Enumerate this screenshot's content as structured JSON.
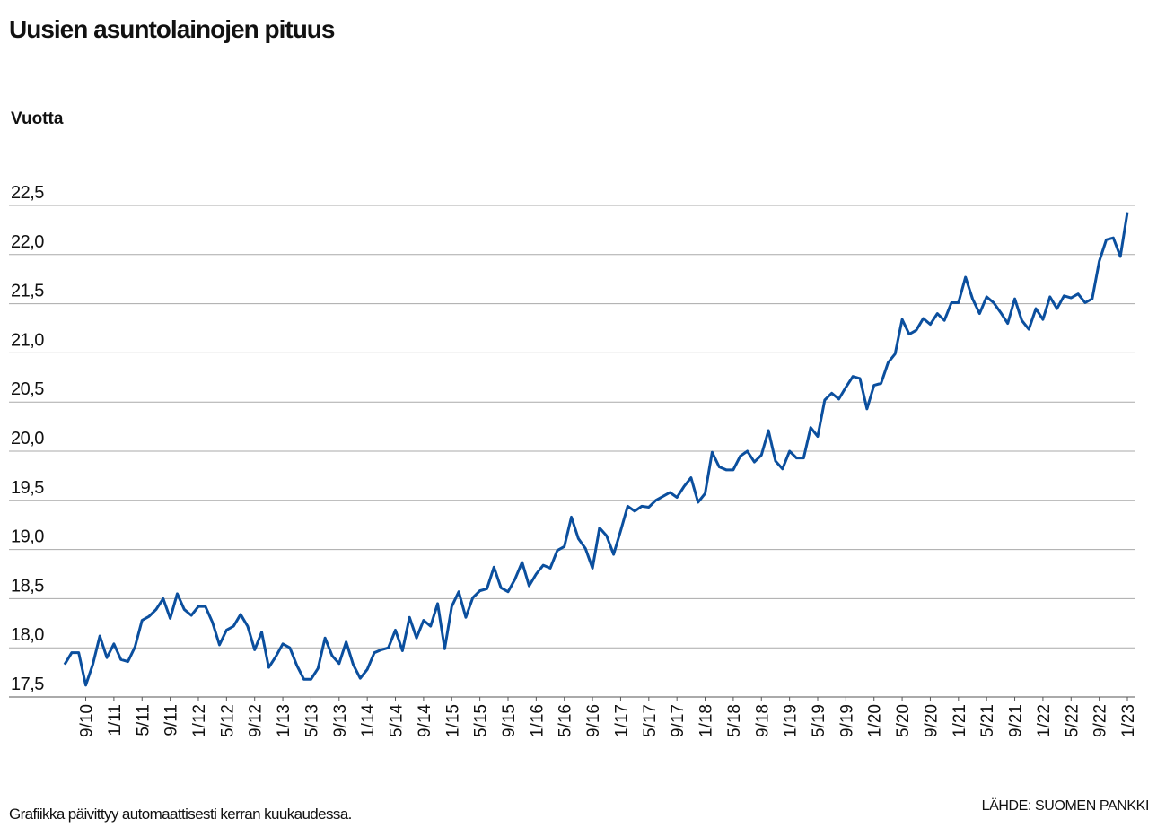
{
  "chart_data": {
    "type": "line",
    "title": "Uusien asuntolainojen pituus",
    "y_label": "Vuotta",
    "note": "Grafiikka päivittyy automaattisesti kerran kuukaudessa.",
    "source": "LÄHDE: SUOMEN PANKKI",
    "categories": [
      null,
      null,
      null,
      "9/10",
      null,
      null,
      null,
      "1/11",
      null,
      null,
      null,
      "5/11",
      null,
      null,
      null,
      "9/11",
      null,
      null,
      null,
      "1/12",
      null,
      null,
      null,
      "5/12",
      null,
      null,
      null,
      "9/12",
      null,
      null,
      null,
      "1/13",
      null,
      null,
      null,
      "5/13",
      null,
      null,
      null,
      "9/13",
      null,
      null,
      null,
      "1/14",
      null,
      null,
      null,
      "5/14",
      null,
      null,
      null,
      "9/14",
      null,
      null,
      null,
      "1/15",
      null,
      null,
      null,
      "5/15",
      null,
      null,
      null,
      "9/15",
      null,
      null,
      null,
      "1/16",
      null,
      null,
      null,
      "5/16",
      null,
      null,
      null,
      "9/16",
      null,
      null,
      null,
      "1/17",
      null,
      null,
      null,
      "5/17",
      null,
      null,
      null,
      "9/17",
      null,
      null,
      null,
      "1/18",
      null,
      null,
      null,
      "5/18",
      null,
      null,
      null,
      "9/18",
      null,
      null,
      null,
      "1/19",
      null,
      null,
      null,
      "5/19",
      null,
      null,
      null,
      "9/19",
      null,
      null,
      null,
      "1/20",
      null,
      null,
      null,
      "5/20",
      null,
      null,
      null,
      "9/20",
      null,
      null,
      null,
      "1/21",
      null,
      null,
      null,
      "5/21",
      null,
      null,
      null,
      "9/21",
      null,
      null,
      null,
      "1/22",
      null,
      null,
      null,
      "5/22",
      null,
      null,
      null,
      "9/22",
      null,
      null,
      null,
      "1/23"
    ],
    "series": [
      {
        "color": "#0b4f9e",
        "values": [
          17.83,
          17.95,
          17.95,
          17.62,
          17.83,
          18.12,
          17.9,
          18.04,
          17.88,
          17.86,
          18.01,
          18.28,
          18.32,
          18.39,
          18.5,
          18.3,
          18.55,
          18.39,
          18.33,
          18.42,
          18.42,
          18.26,
          18.03,
          18.18,
          18.22,
          18.34,
          18.22,
          17.98,
          18.16,
          17.8,
          17.91,
          18.04,
          18.0,
          17.82,
          17.68,
          17.68,
          17.79,
          18.1,
          17.92,
          17.84,
          18.06,
          17.83,
          17.69,
          17.78,
          17.95,
          17.98,
          18.0,
          18.18,
          17.97,
          18.31,
          18.1,
          18.28,
          18.22,
          18.45,
          17.99,
          18.42,
          18.57,
          18.31,
          18.51,
          18.58,
          18.6,
          18.82,
          18.61,
          18.57,
          18.7,
          18.87,
          18.63,
          18.75,
          18.84,
          18.81,
          18.99,
          19.03,
          19.33,
          19.11,
          19.01,
          18.81,
          19.22,
          19.14,
          18.95,
          19.19,
          19.44,
          19.39,
          19.44,
          19.43,
          19.5,
          19.54,
          19.58,
          19.53,
          19.64,
          19.73,
          19.48,
          19.57,
          19.99,
          19.84,
          19.81,
          19.81,
          19.95,
          20.0,
          19.89,
          19.96,
          20.21,
          19.9,
          19.82,
          20.0,
          19.93,
          19.93,
          20.24,
          20.15,
          20.52,
          20.59,
          20.53,
          20.65,
          20.76,
          20.74,
          20.43,
          20.67,
          20.69,
          20.9,
          20.99,
          21.34,
          21.19,
          21.23,
          21.35,
          21.29,
          21.4,
          21.33,
          21.51,
          21.51,
          21.77,
          21.55,
          21.4,
          21.57,
          21.51,
          21.41,
          21.3,
          21.55,
          21.33,
          21.24,
          21.45,
          21.34,
          21.57,
          21.45,
          21.58,
          21.56,
          21.6,
          21.51,
          21.55,
          21.93,
          22.15,
          22.17,
          21.98,
          22.43
        ]
      }
    ],
    "ylim": [
      17.5,
      22.5
    ],
    "yticks": [
      {
        "value": 17.5,
        "label": "17,5"
      },
      {
        "value": 18,
        "label": "18,0"
      },
      {
        "value": 18.5,
        "label": "18,5"
      },
      {
        "value": 19,
        "label": "19,0"
      },
      {
        "value": 19.5,
        "label": "19,5"
      },
      {
        "value": 20,
        "label": "20,0"
      },
      {
        "value": 20.5,
        "label": "20,5"
      },
      {
        "value": 21,
        "label": "21,0"
      },
      {
        "value": 21.5,
        "label": "21,5"
      },
      {
        "value": 22,
        "label": "22,0"
      },
      {
        "value": 22.5,
        "label": "22,5"
      }
    ],
    "grid": true
  }
}
